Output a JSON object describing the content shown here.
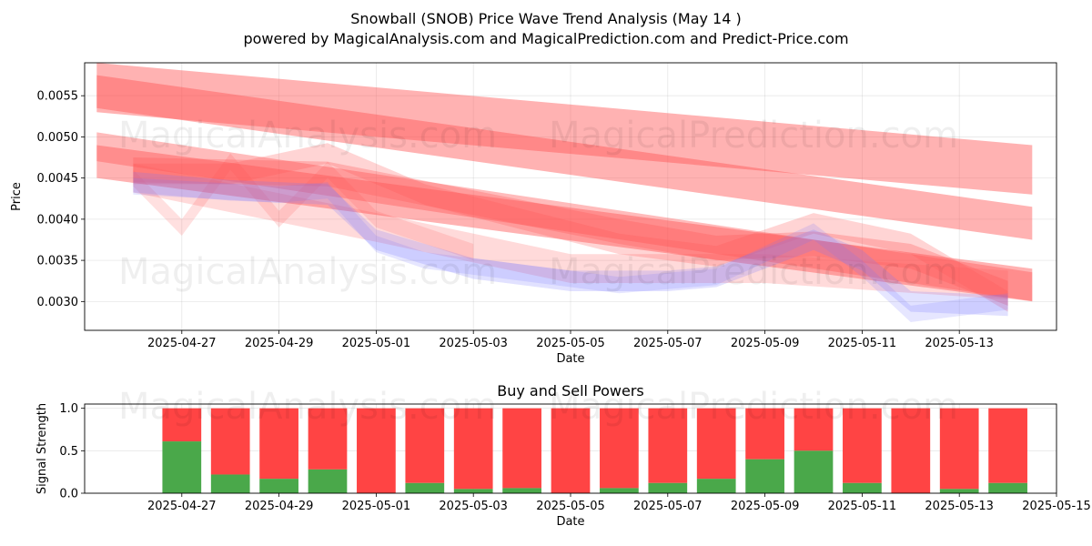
{
  "title": "Snowball (SNOB) Price Wave Trend Analysis (May 14 )",
  "subtitle": "powered by MagicalAnalysis.com and MagicalPrediction.com and Predict-Price.com",
  "watermarks": [
    "MagicalAnalysis.com",
    "MagicalPrediction.com",
    "MagicalAnalysis.com",
    "MagicalPrediction.com",
    "MagicalAnalysis.com",
    "MagicalPrediction.com"
  ],
  "colors": {
    "sell": "#ff4444",
    "buy": "#4aa84a",
    "band_red": "#ff5555",
    "band_blue": "#7777ff"
  },
  "chart_data": [
    {
      "type": "area",
      "title": "",
      "xlabel": "Date",
      "ylabel": "Price",
      "ylim": [
        0.00265,
        0.0059
      ],
      "xlim": [
        "2025-04-25",
        "2025-05-15"
      ],
      "x_ticks": [
        "2025-04-27",
        "2025-04-29",
        "2025-05-01",
        "2025-05-03",
        "2025-05-05",
        "2025-05-07",
        "2025-05-09",
        "2025-05-11",
        "2025-05-13"
      ],
      "y_ticks": [
        0.003,
        0.0035,
        0.004,
        0.0045,
        0.005,
        0.0055
      ],
      "y_tick_labels": [
        "0.0030",
        "0.0035",
        "0.0040",
        "0.0045",
        "0.0050",
        "0.0055"
      ],
      "grid": true,
      "red_bands": [
        {
          "x": [
            "2025-04-25T06:00",
            "2025-05-14T12:00"
          ],
          "y": [
            0.0056,
            0.0046
          ],
          "width": 0.0006,
          "opacity": 0.45
        },
        {
          "x": [
            "2025-04-25T06:00",
            "2025-05-14T12:00"
          ],
          "y": [
            0.00555,
            0.00395
          ],
          "width": 0.0004,
          "opacity": 0.45
        },
        {
          "x": [
            "2025-04-25T06:00",
            "2025-05-14T12:00"
          ],
          "y": [
            0.0047,
            0.0032
          ],
          "width": 0.0004,
          "opacity": 0.45
        },
        {
          "x": [
            "2025-04-25T06:00",
            "2025-05-14T12:00"
          ],
          "y": [
            0.00488,
            0.00318
          ],
          "width": 0.00035,
          "opacity": 0.4
        },
        {
          "x": [
            "2025-04-26",
            "2025-04-30",
            "2025-05-03",
            "2025-05-06",
            "2025-05-08",
            "2025-05-10",
            "2025-05-12",
            "2025-05-14"
          ],
          "y": [
            0.0046,
            0.00455,
            0.0042,
            0.00385,
            0.00365,
            0.0037,
            0.00355,
            0.0031
          ],
          "width": 0.0003,
          "opacity": 0.3
        },
        {
          "x": [
            "2025-04-26",
            "2025-04-28",
            "2025-04-30",
            "2025-05-02",
            "2025-05-04",
            "2025-05-06",
            "2025-05-08",
            "2025-05-10",
            "2025-05-12",
            "2025-05-14"
          ],
          "y": [
            0.00455,
            0.00455,
            0.0048,
            0.0043,
            0.004,
            0.0037,
            0.00355,
            0.00395,
            0.0037,
            0.003
          ],
          "width": 0.00025,
          "opacity": 0.25
        },
        {
          "x": [
            "2025-04-26",
            "2025-04-27",
            "2025-04-28",
            "2025-04-29",
            "2025-04-30",
            "2025-05-01",
            "2025-05-03"
          ],
          "y": [
            0.0045,
            0.0039,
            0.0047,
            0.004,
            0.0046,
            0.004,
            0.0036
          ],
          "width": 0.0002,
          "opacity": 0.18
        },
        {
          "x": [
            "2025-04-26",
            "2025-05-01",
            "2025-05-05",
            "2025-05-09",
            "2025-05-14"
          ],
          "y": [
            0.0045,
            0.0039,
            0.0034,
            0.0034,
            0.0032
          ],
          "width": 0.00035,
          "opacity": 0.22
        }
      ],
      "blue_bands": [
        {
          "x": [
            "2025-04-26",
            "2025-04-28",
            "2025-04-30",
            "2025-05-01",
            "2025-05-03",
            "2025-05-05",
            "2025-05-07",
            "2025-05-08",
            "2025-05-10",
            "2025-05-11",
            "2025-05-12",
            "2025-05-14"
          ],
          "y": [
            0.00445,
            0.00435,
            0.0043,
            0.00375,
            0.0034,
            0.00325,
            0.00325,
            0.0033,
            0.00375,
            0.0035,
            0.003,
            0.00295
          ],
          "width": 0.00025,
          "opacity": 0.22
        },
        {
          "x": [
            "2025-04-26",
            "2025-04-29",
            "2025-04-30",
            "2025-05-01",
            "2025-05-02",
            "2025-05-04",
            "2025-05-06",
            "2025-05-08",
            "2025-05-10",
            "2025-05-11",
            "2025-05-12",
            "2025-05-14"
          ],
          "y": [
            0.0044,
            0.0043,
            0.00435,
            0.0037,
            0.0035,
            0.00335,
            0.0032,
            0.0033,
            0.00385,
            0.0034,
            0.00285,
            0.003
          ],
          "width": 0.0002,
          "opacity": 0.18
        }
      ]
    },
    {
      "type": "bar",
      "title": "Buy and Sell Powers",
      "xlabel": "Date",
      "ylabel": "Signal Strength",
      "ylim": [
        0,
        1.05
      ],
      "xlim": [
        "2025-04-25",
        "2025-05-15"
      ],
      "x_ticks": [
        "2025-04-27",
        "2025-04-29",
        "2025-05-01",
        "2025-05-03",
        "2025-05-05",
        "2025-05-07",
        "2025-05-09",
        "2025-05-11",
        "2025-05-13",
        "2025-05-15"
      ],
      "y_ticks": [
        0.0,
        0.5,
        1.0
      ],
      "y_tick_labels": [
        "0.0",
        "0.5",
        "1.0"
      ],
      "grid": true,
      "categories": [
        "2025-04-27",
        "2025-04-28",
        "2025-04-29",
        "2025-04-30",
        "2025-05-01",
        "2025-05-02",
        "2025-05-03",
        "2025-05-04",
        "2025-05-05",
        "2025-05-06",
        "2025-05-07",
        "2025-05-08",
        "2025-05-09",
        "2025-05-10",
        "2025-05-11",
        "2025-05-12",
        "2025-05-13",
        "2025-05-14"
      ],
      "series": [
        {
          "name": "Buy",
          "values": [
            0.61,
            0.22,
            0.17,
            0.28,
            0.0,
            0.12,
            0.05,
            0.06,
            0.0,
            0.06,
            0.12,
            0.17,
            0.4,
            0.5,
            0.12,
            0.0,
            0.05,
            0.12
          ]
        },
        {
          "name": "Sell",
          "values": [
            0.39,
            0.78,
            0.83,
            0.72,
            1.0,
            0.88,
            0.95,
            0.94,
            1.0,
            0.94,
            0.88,
            0.83,
            0.6,
            0.5,
            0.88,
            1.0,
            0.95,
            0.88
          ]
        }
      ]
    }
  ]
}
